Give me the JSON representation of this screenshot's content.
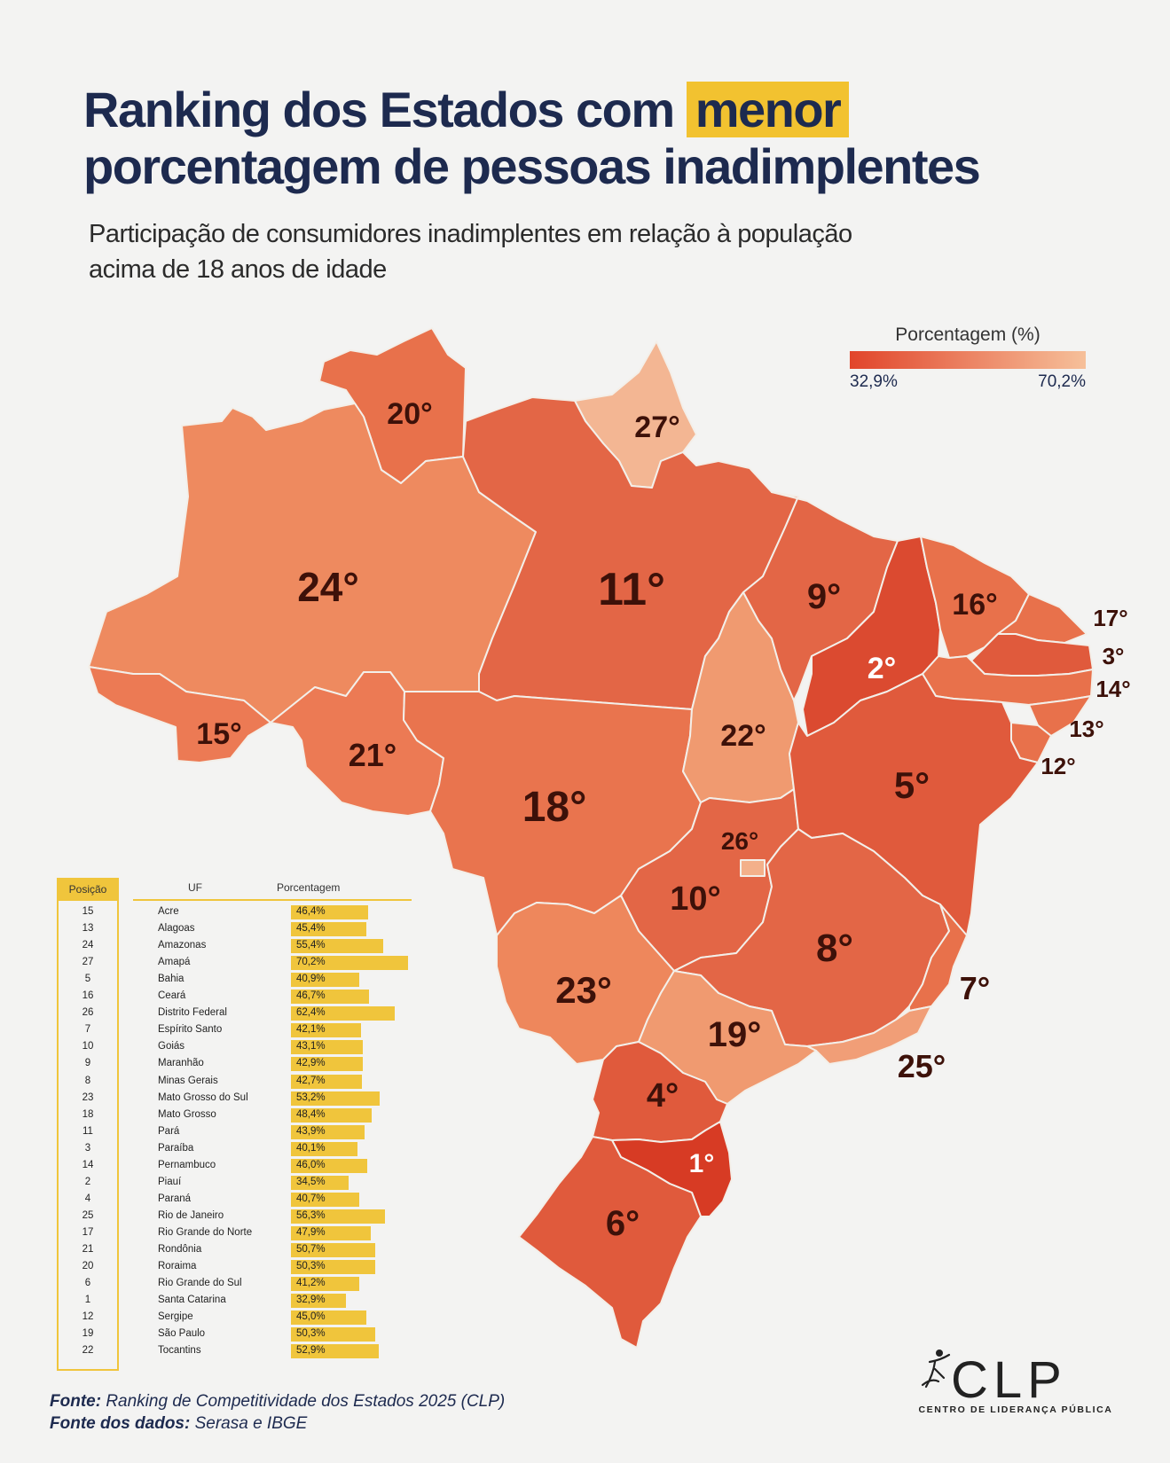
{
  "title": {
    "line1_before": "Ranking dos Estados com ",
    "line1_highlight": "menor",
    "line2": "porcentagem de pessoas inadimplentes"
  },
  "subtitle": {
    "line1": "Participação de consumidores inadimplentes em relação à população",
    "line2": "acima de 18 anos de idade"
  },
  "legend": {
    "title": "Porcentagem (%)",
    "min_label": "32,9%",
    "max_label": "70,2%",
    "min_color": "#e1452b",
    "max_color": "#f6c09a"
  },
  "map_labels": {
    "RR": "20°",
    "AP": "27°",
    "AM": "24°",
    "PA": "11°",
    "MA": "9°",
    "CE": "16°",
    "RN": "17°",
    "PB": "3°",
    "PE": "14°",
    "AL": "13°",
    "SE": "12°",
    "PI": "2°",
    "AC": "15°",
    "RO": "21°",
    "TO": "22°",
    "BA": "5°",
    "MT": "18°",
    "DF": "26°",
    "GO": "10°",
    "MG": "8°",
    "ES": "7°",
    "MS": "23°",
    "SP": "19°",
    "RJ": "25°",
    "PR": "4°",
    "SC": "1°",
    "RS": "6°"
  },
  "table": {
    "headers": {
      "position": "Posição",
      "uf": "UF",
      "percentage": "Porcentagem"
    },
    "rows": [
      {
        "pos": "15",
        "uf": "Acre",
        "pct": "46,4%",
        "value": 46.4
      },
      {
        "pos": "13",
        "uf": "Alagoas",
        "pct": "45,4%",
        "value": 45.4
      },
      {
        "pos": "24",
        "uf": "Amazonas",
        "pct": "55,4%",
        "value": 55.4
      },
      {
        "pos": "27",
        "uf": "Amapá",
        "pct": "70,2%",
        "value": 70.2
      },
      {
        "pos": "5",
        "uf": "Bahia",
        "pct": "40,9%",
        "value": 40.9
      },
      {
        "pos": "16",
        "uf": "Ceará",
        "pct": "46,7%",
        "value": 46.7
      },
      {
        "pos": "26",
        "uf": "Distrito Federal",
        "pct": "62,4%",
        "value": 62.4
      },
      {
        "pos": "7",
        "uf": "Espírito Santo",
        "pct": "42,1%",
        "value": 42.1
      },
      {
        "pos": "10",
        "uf": "Goiás",
        "pct": "43,1%",
        "value": 43.1
      },
      {
        "pos": "9",
        "uf": "Maranhão",
        "pct": "42,9%",
        "value": 42.9
      },
      {
        "pos": "8",
        "uf": "Minas Gerais",
        "pct": "42,7%",
        "value": 42.7
      },
      {
        "pos": "23",
        "uf": "Mato Grosso do Sul",
        "pct": "53,2%",
        "value": 53.2
      },
      {
        "pos": "18",
        "uf": "Mato Grosso",
        "pct": "48,4%",
        "value": 48.4
      },
      {
        "pos": "11",
        "uf": "Pará",
        "pct": "43,9%",
        "value": 43.9
      },
      {
        "pos": "3",
        "uf": "Paraíba",
        "pct": "40,1%",
        "value": 40.1
      },
      {
        "pos": "14",
        "uf": "Pernambuco",
        "pct": "46,0%",
        "value": 46.0
      },
      {
        "pos": "2",
        "uf": "Piauí",
        "pct": "34,5%",
        "value": 34.5
      },
      {
        "pos": "4",
        "uf": "Paraná",
        "pct": "40,7%",
        "value": 40.7
      },
      {
        "pos": "25",
        "uf": "Rio de Janeiro",
        "pct": "56,3%",
        "value": 56.3
      },
      {
        "pos": "17",
        "uf": "Rio Grande do Norte",
        "pct": "47,9%",
        "value": 47.9
      },
      {
        "pos": "21",
        "uf": "Rondônia",
        "pct": "50,7%",
        "value": 50.7
      },
      {
        "pos": "20",
        "uf": "Roraima",
        "pct": "50,3%",
        "value": 50.3
      },
      {
        "pos": "6",
        "uf": "Rio Grande do Sul",
        "pct": "41,2%",
        "value": 41.2
      },
      {
        "pos": "1",
        "uf": "Santa Catarina",
        "pct": "32,9%",
        "value": 32.9
      },
      {
        "pos": "12",
        "uf": "Sergipe",
        "pct": "45,0%",
        "value": 45.0
      },
      {
        "pos": "19",
        "uf": "São Paulo",
        "pct": "50,3%",
        "value": 50.3
      },
      {
        "pos": "22",
        "uf": "Tocantins",
        "pct": "52,9%",
        "value": 52.9
      }
    ]
  },
  "source": {
    "label1": "Fonte:",
    "text1": " Ranking de Competitividade dos Estados 2025 (CLP)",
    "label2": "Fonte dos dados:",
    "text2": " Serasa e IBGE"
  },
  "logo": {
    "name": "CLP",
    "tagline": "CENTRO DE LIDERANÇA PÚBLICA"
  }
}
